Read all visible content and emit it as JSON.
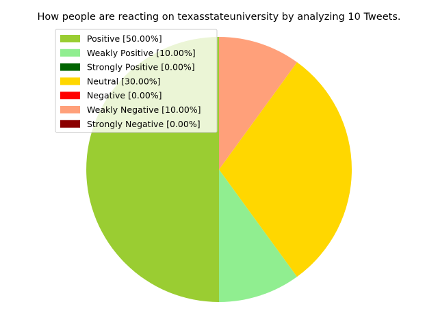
{
  "chart_data": {
    "type": "pie",
    "title": "How people are reacting on texasstateuniversity by analyzing 10 Tweets.",
    "start_angle_deg": 90,
    "direction": "counterclockwise",
    "legend_placement": "upper-left",
    "slices": [
      {
        "label": "Positive [50.00%]",
        "value": 50,
        "color": "#9acd32"
      },
      {
        "label": "Weakly Positive [10.00%]",
        "value": 10,
        "color": "#90ee90"
      },
      {
        "label": "Strongly Positive [0.00%]",
        "value": 0,
        "color": "#006400"
      },
      {
        "label": "Neutral [30.00%]",
        "value": 30,
        "color": "#ffd700"
      },
      {
        "label": "Negative [0.00%]",
        "value": 0,
        "color": "#ff0000"
      },
      {
        "label": "Weakly Negative [10.00%]",
        "value": 10,
        "color": "#ffa07a"
      },
      {
        "label": "Strongly Negative [0.00%]",
        "value": 0,
        "color": "#8b0000"
      }
    ]
  }
}
